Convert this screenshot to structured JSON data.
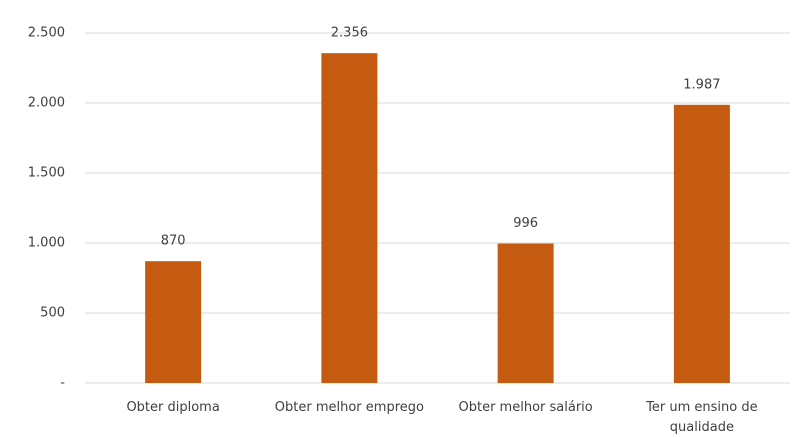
{
  "chart_data": {
    "type": "bar",
    "categories": [
      "Obter diploma",
      "Obter melhor emprego",
      "Obter melhor salário",
      "Ter um ensino de qualidade"
    ],
    "values": [
      870,
      2356,
      996,
      1987
    ],
    "value_labels": [
      "870",
      "2.356",
      "996",
      "1.987"
    ],
    "color": "#c55a11",
    "ylim": [
      0,
      2500
    ],
    "yticks": [
      {
        "value": 0,
        "label": "-"
      },
      500,
      {
        "value": 1000,
        "label": "1.000"
      },
      {
        "value": 1500,
        "label": "1.500"
      },
      {
        "value": 2000,
        "label": "2.000"
      },
      {
        "value": 2500,
        "label": "2.500"
      }
    ],
    "grid": true
  }
}
